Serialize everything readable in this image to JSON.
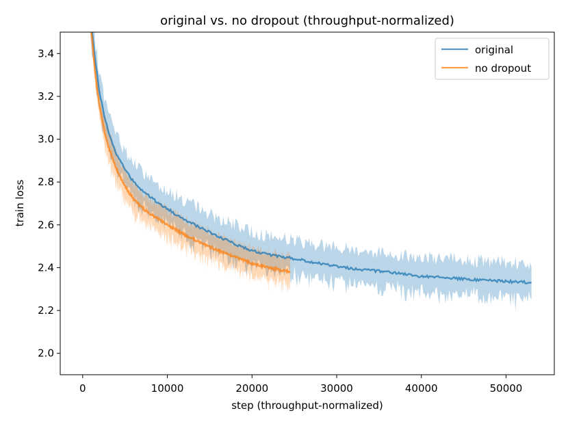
{
  "chart_data": {
    "type": "line",
    "title": "original vs. no dropout (throughput-normalized)",
    "xlabel": "step (throughput-normalized)",
    "ylabel": "train loss",
    "xlim": [
      -2650,
      55700
    ],
    "ylim": [
      1.9,
      3.5
    ],
    "xticks": [
      0,
      10000,
      20000,
      30000,
      40000,
      50000
    ],
    "yticks": [
      2.0,
      2.2,
      2.4,
      2.6,
      2.8,
      3.0,
      3.2,
      3.4
    ],
    "ytick_labels": [
      "2.0",
      "2.2",
      "2.4",
      "2.6",
      "2.8",
      "3.0",
      "3.2",
      "3.4"
    ],
    "legend": {
      "location": "upper right"
    },
    "series": [
      {
        "name": "original",
        "color": "#1f77b4",
        "x": [
          800,
          1000,
          1500,
          2000,
          2500,
          3000,
          4000,
          5000,
          6000,
          7000,
          8000,
          9000,
          10000,
          12000,
          14000,
          16000,
          18000,
          20000,
          22000,
          24500,
          28000,
          32000,
          36000,
          40000,
          44000,
          48000,
          53000
        ],
        "y": [
          3.7,
          3.55,
          3.36,
          3.22,
          3.12,
          3.04,
          2.93,
          2.86,
          2.8,
          2.76,
          2.73,
          2.7,
          2.675,
          2.625,
          2.585,
          2.545,
          2.51,
          2.48,
          2.46,
          2.445,
          2.42,
          2.395,
          2.38,
          2.36,
          2.35,
          2.34,
          2.33
        ],
        "band_halfwidth": 0.1
      },
      {
        "name": "no dropout",
        "color": "#ff7f0e",
        "x": [
          800,
          1000,
          1500,
          2000,
          2500,
          3000,
          4000,
          5000,
          6000,
          7000,
          8000,
          9000,
          10000,
          12000,
          14000,
          16000,
          18000,
          20000,
          22000,
          24500
        ],
        "y": [
          3.7,
          3.52,
          3.3,
          3.15,
          3.05,
          2.97,
          2.86,
          2.78,
          2.72,
          2.68,
          2.65,
          2.625,
          2.6,
          2.555,
          2.515,
          2.48,
          2.45,
          2.42,
          2.4,
          2.38
        ],
        "band_halfwidth": 0.08
      }
    ]
  }
}
